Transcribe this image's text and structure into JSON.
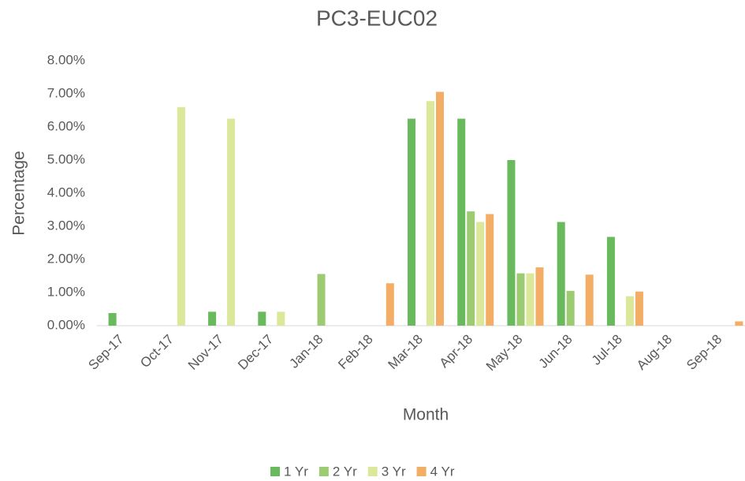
{
  "chart_data": {
    "type": "bar",
    "title": "PC3-EUC02",
    "x_label": "Month",
    "y_label": "Percentage",
    "categories": [
      "Sep-17",
      "Oct-17",
      "Nov-17",
      "Dec-17",
      "Jan-18",
      "Feb-18",
      "Mar-18",
      "Apr-18",
      "May-18",
      "Jun-18",
      "Jul-18",
      "Aug-18",
      "Sep-18"
    ],
    "series": [
      {
        "name": "1 Yr",
        "color": "#68ba5c",
        "values": [
          0.38,
          0,
          0.42,
          0.42,
          0,
          0,
          6.25,
          6.25,
          5.0,
          3.13,
          2.68,
          0,
          0
        ]
      },
      {
        "name": "2 Yr",
        "color": "#9dcb72",
        "values": [
          0,
          0,
          0,
          0,
          1.56,
          0,
          0,
          3.45,
          1.58,
          1.05,
          0,
          0,
          0
        ]
      },
      {
        "name": "3 Yr",
        "color": "#dbe799",
        "values": [
          0,
          6.6,
          6.25,
          0.42,
          0,
          0,
          6.78,
          3.13,
          1.58,
          0,
          0.89,
          0,
          0
        ]
      },
      {
        "name": "4 Yr",
        "color": "#f4ad64",
        "values": [
          0,
          0,
          0,
          0,
          0,
          1.28,
          7.06,
          3.37,
          1.76,
          1.54,
          1.03,
          0,
          0.13
        ]
      }
    ],
    "ylim": [
      0,
      8
    ],
    "yticks": [
      {
        "value": 0,
        "label": "0.00%"
      },
      {
        "value": 1,
        "label": "1.00%"
      },
      {
        "value": 2,
        "label": "2.00%"
      },
      {
        "value": 3,
        "label": "3.00%"
      },
      {
        "value": 4,
        "label": "4.00%"
      },
      {
        "value": 5,
        "label": "5.00%"
      },
      {
        "value": 6,
        "label": "6.00%"
      },
      {
        "value": 7,
        "label": "7.00%"
      },
      {
        "value": 8,
        "label": "8.00%"
      }
    ],
    "grid": false,
    "legend": "bottom"
  }
}
